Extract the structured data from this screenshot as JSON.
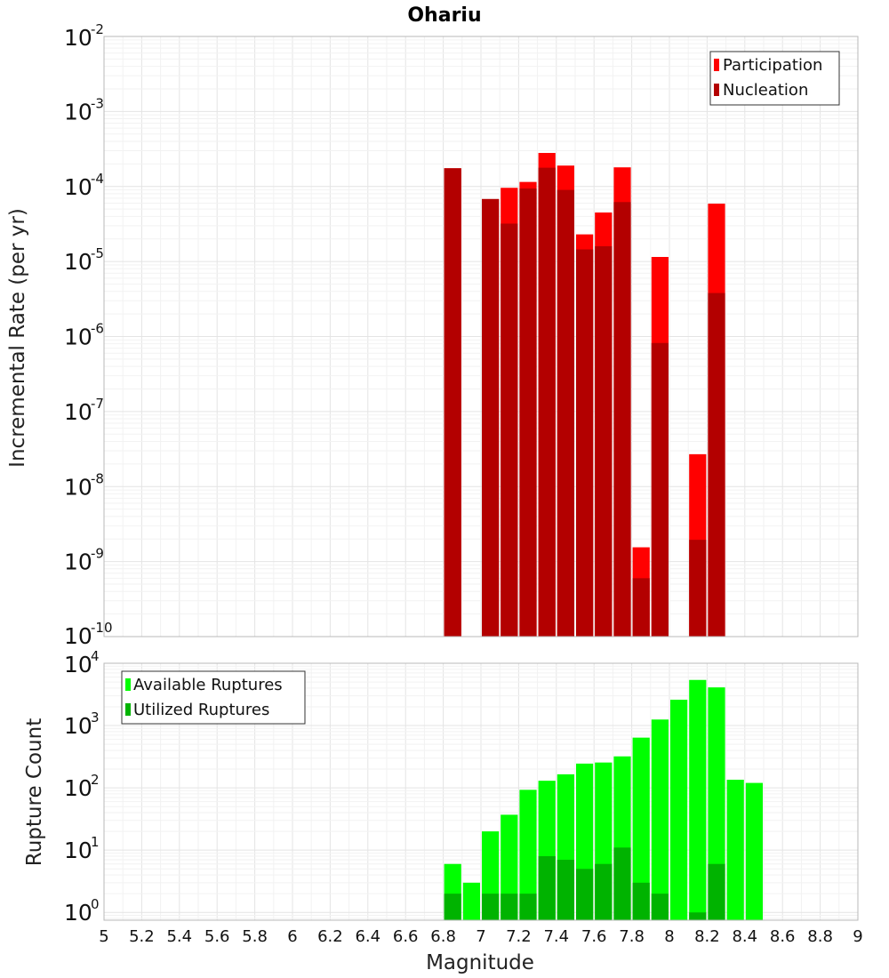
{
  "title": "Ohariu",
  "chart_data": [
    {
      "type": "bar",
      "ylabel": "Incremental Rate (per yr)",
      "yscale": "log",
      "ylim": [
        1e-10,
        0.01
      ],
      "xlim": [
        5,
        9
      ],
      "grid": true,
      "legend_position": "top-right",
      "y_ticks": [
        {
          "base": "10",
          "exp": "-10",
          "value": 1e-10
        },
        {
          "base": "10",
          "exp": "-9",
          "value": 1e-09
        },
        {
          "base": "10",
          "exp": "-8",
          "value": 1e-08
        },
        {
          "base": "10",
          "exp": "-7",
          "value": 1e-07
        },
        {
          "base": "10",
          "exp": "-6",
          "value": 1e-06
        },
        {
          "base": "10",
          "exp": "-5",
          "value": 1e-05
        },
        {
          "base": "10",
          "exp": "-4",
          "value": 0.0001
        },
        {
          "base": "10",
          "exp": "-3",
          "value": 0.001
        },
        {
          "base": "10",
          "exp": "-2",
          "value": 0.01
        }
      ],
      "x": [
        6.85,
        7.05,
        7.15,
        7.25,
        7.35,
        7.45,
        7.55,
        7.65,
        7.75,
        7.85,
        7.95,
        8.15,
        8.25
      ],
      "series": [
        {
          "name": "Participation",
          "color": "#ff0000",
          "values": [
            0.000175,
            6.8e-05,
            9.6e-05,
            0.000115,
            0.00028,
            0.00019,
            2.3e-05,
            4.5e-05,
            0.00018,
            1.55e-09,
            1.15e-05,
            2.7e-08,
            5.9e-05
          ]
        },
        {
          "name": "Nucleation",
          "color": "#b30000",
          "values": [
            0.000175,
            6.8e-05,
            3.2e-05,
            9.4e-05,
            0.000178,
            9e-05,
            1.45e-05,
            1.6e-05,
            6.2e-05,
            6e-10,
            8.2e-07,
            1.95e-09,
            3.8e-06
          ]
        }
      ]
    },
    {
      "type": "bar",
      "xlabel": "Magnitude",
      "ylabel": "Rupture Count",
      "yscale": "log",
      "ylim": [
        0.75,
        10000
      ],
      "xlim": [
        5,
        9
      ],
      "grid": true,
      "legend_position": "top-left",
      "y_ticks": [
        {
          "base": "10",
          "exp": "0",
          "value": 1
        },
        {
          "base": "10",
          "exp": "1",
          "value": 10
        },
        {
          "base": "10",
          "exp": "2",
          "value": 100
        },
        {
          "base": "10",
          "exp": "3",
          "value": 1000
        },
        {
          "base": "10",
          "exp": "4",
          "value": 10000
        }
      ],
      "x_ticks": [
        "5",
        "5.2",
        "5.4",
        "5.6",
        "5.8",
        "6",
        "6.2",
        "6.4",
        "6.6",
        "6.8",
        "7",
        "7.2",
        "7.4",
        "7.6",
        "7.8",
        "8",
        "8.2",
        "8.4",
        "8.6",
        "8.8",
        "9"
      ],
      "x": [
        6.85,
        6.95,
        7.05,
        7.15,
        7.25,
        7.35,
        7.45,
        7.55,
        7.65,
        7.75,
        7.85,
        7.95,
        8.05,
        8.15,
        8.25,
        8.35,
        8.45
      ],
      "series": [
        {
          "name": "Available Ruptures",
          "color": "#00ff00",
          "values": [
            6,
            3,
            20,
            37,
            93,
            130,
            165,
            245,
            255,
            320,
            640,
            1250,
            2600,
            5400,
            4100,
            135,
            120
          ]
        },
        {
          "name": "Utilized Ruptures",
          "color": "#00b300",
          "values": [
            2,
            0,
            2,
            2,
            2,
            8,
            7,
            5,
            6,
            11,
            3,
            2,
            0,
            1,
            6,
            0,
            0
          ]
        }
      ]
    }
  ]
}
